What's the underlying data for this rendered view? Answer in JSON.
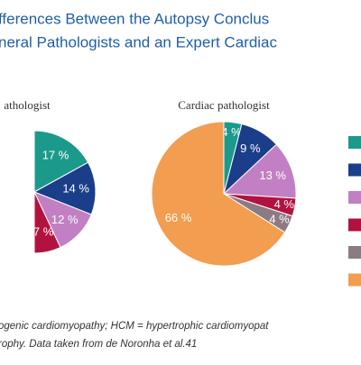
{
  "header": {
    "lines": [
      "fferences Between the Autopsy Conclus",
      "neral Pathologists and an Expert Cardiac"
    ]
  },
  "chart_data": [
    {
      "type": "pie",
      "title": "athologist",
      "values": [
        17,
        14,
        12,
        7
      ],
      "value_labels": [
        "17 %",
        "14 %",
        "12 %",
        "7 %"
      ],
      "colors": [
        "#1b9a8b",
        "#1a3e89",
        "#c27fc3",
        "#b2123f"
      ]
    },
    {
      "type": "pie",
      "title": "Cardiac pathologist",
      "values": [
        4,
        9,
        13,
        4,
        4,
        66
      ],
      "value_labels": [
        "4 %",
        "9 %",
        "13 %",
        "4 %",
        "4 %",
        "66 %"
      ],
      "colors": [
        "#1b9a8b",
        "#1a3e89",
        "#c27fc3",
        "#b2123f",
        "#8c7b82",
        "#f29d4f"
      ]
    }
  ],
  "footer": {
    "lines": [
      "ogenic cardiomyopathy; HCM = hypertrophic cardiomyopat",
      "rophy. Data taken from de Noronha et al.41"
    ]
  }
}
